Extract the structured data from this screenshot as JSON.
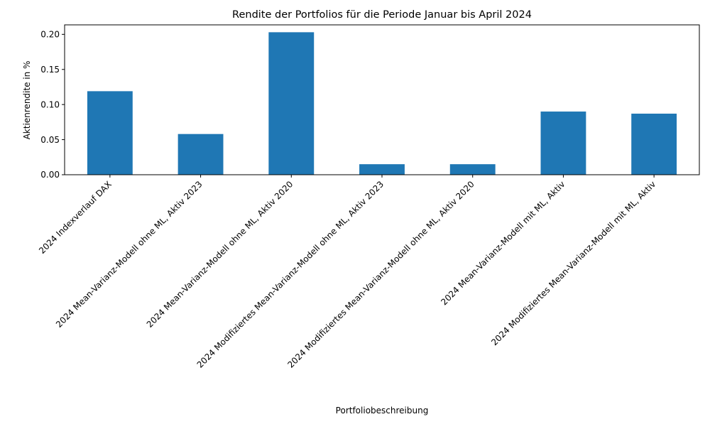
{
  "chart_data": {
    "type": "bar",
    "title": "Rendite der Portfolios für die Periode Januar bis April 2024",
    "xlabel": "Portfoliobeschreibung",
    "ylabel": "Aktienrendite in %",
    "categories": [
      "2024 Indexverlauf DAX",
      "2024 Mean-Varianz-Modell ohne ML, Aktiv 2023",
      "2024 Mean-Varianz-Modell ohne ML, Aktiv 2020",
      "2024 Modifiziertes Mean-Varianz-Modell ohne ML, Aktiv 2023",
      "2024 Modifiziertes Mean-Varianz-Modell ohne ML, Aktiv 2020",
      "2024 Mean-Varianz-Modell mit ML, Aktiv",
      "2024 Modifiziertes Mean-Varianz-Modell mit ML, Aktiv"
    ],
    "values": [
      0.119,
      0.058,
      0.203,
      0.015,
      0.015,
      0.09,
      0.087
    ],
    "ylim": [
      0,
      0.2135
    ],
    "yticks": [
      "0.00",
      "0.05",
      "0.10",
      "0.15",
      "0.20"
    ],
    "bar_color": "#1f77b4",
    "grid": false,
    "legend": "none"
  }
}
